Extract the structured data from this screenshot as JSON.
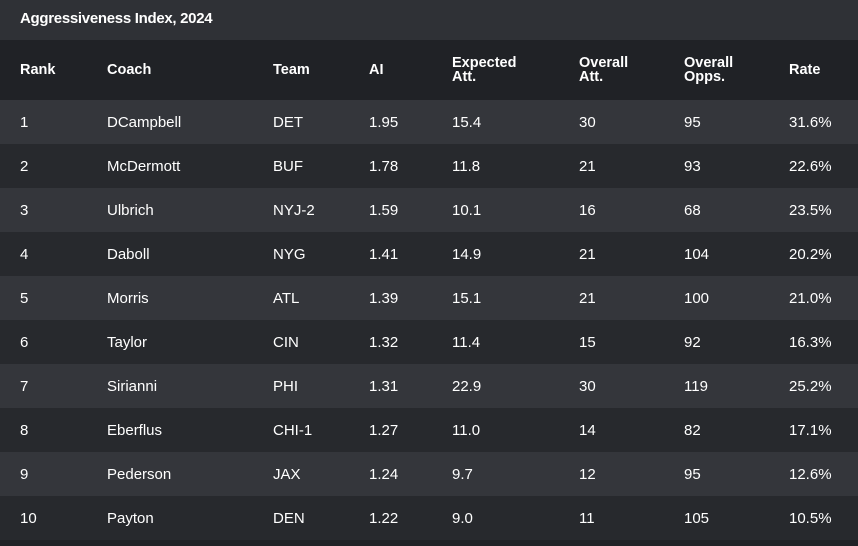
{
  "chart_data": {
    "type": "table",
    "title": "Aggressiveness Index, 2024",
    "columns": [
      {
        "line1": "Rank",
        "line2": ""
      },
      {
        "line1": "Coach",
        "line2": ""
      },
      {
        "line1": "Team",
        "line2": ""
      },
      {
        "line1": "AI",
        "line2": ""
      },
      {
        "line1": "Expected",
        "line2": "Att."
      },
      {
        "line1": "Overall",
        "line2": "Att."
      },
      {
        "line1": "Overall",
        "line2": "Opps."
      },
      {
        "line1": "Rate",
        "line2": ""
      }
    ],
    "rows": [
      [
        "1",
        "DCampbell",
        "DET",
        "1.95",
        "15.4",
        "30",
        "95",
        "31.6%"
      ],
      [
        "2",
        "McDermott",
        "BUF",
        "1.78",
        "11.8",
        "21",
        "93",
        "22.6%"
      ],
      [
        "3",
        "Ulbrich",
        "NYJ-2",
        "1.59",
        "10.1",
        "16",
        "68",
        "23.5%"
      ],
      [
        "4",
        "Daboll",
        "NYG",
        "1.41",
        "14.9",
        "21",
        "104",
        "20.2%"
      ],
      [
        "5",
        "Morris",
        "ATL",
        "1.39",
        "15.1",
        "21",
        "100",
        "21.0%"
      ],
      [
        "6",
        "Taylor",
        "CIN",
        "1.32",
        "11.4",
        "15",
        "92",
        "16.3%"
      ],
      [
        "7",
        "Sirianni",
        "PHI",
        "1.31",
        "22.9",
        "30",
        "119",
        "25.2%"
      ],
      [
        "8",
        "Eberflus",
        "CHI-1",
        "1.27",
        "11.0",
        "14",
        "82",
        "17.1%"
      ],
      [
        "9",
        "Pederson",
        "JAX",
        "1.24",
        "9.7",
        "12",
        "95",
        "12.6%"
      ],
      [
        "10",
        "Payton",
        "DEN",
        "1.22",
        "9.0",
        "11",
        "105",
        "10.5%"
      ]
    ]
  }
}
